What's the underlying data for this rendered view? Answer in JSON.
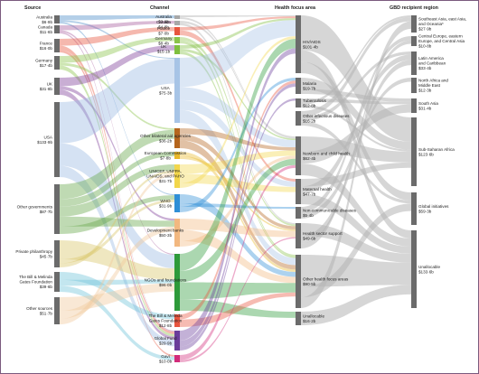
{
  "headers": {
    "source": "Source",
    "channel": "Channel",
    "focus": "Health focus area",
    "region": "GBD recipient region"
  },
  "sources": [
    {
      "id": "australia",
      "name": "Australia",
      "value": "$6·9b",
      "color": "#4d8cc9"
    },
    {
      "id": "canada",
      "name": "Canada",
      "value": "$11·6b",
      "color": "#a85d9e"
    },
    {
      "id": "france",
      "name": "France",
      "value": "$16·0b",
      "color": "#e8553e"
    },
    {
      "id": "germany",
      "name": "Germany",
      "value": "$17·4b",
      "color": "#8bc34a"
    },
    {
      "id": "uk",
      "name": "UK",
      "value": "$31·8b",
      "color": "#7e3f98"
    },
    {
      "id": "usa",
      "name": "USA",
      "value": "$133·9b",
      "color": "#9bbbe3"
    },
    {
      "id": "other-governments",
      "name": "Other governments",
      "value": "$87·7b",
      "color": "#66a84a"
    },
    {
      "id": "private-philanthropy",
      "name": "Private philanthropy",
      "value": "$45·7b",
      "color": "#d8c56a"
    },
    {
      "id": "gates-foundation",
      "name": "The Bill & Melinda Gates Foundation",
      "value": "$39·6b",
      "color": "#6fc4d8"
    },
    {
      "id": "other-sources",
      "name": "Other sources",
      "value": "$51·7b",
      "color": "#f1c99a"
    }
  ],
  "channels": [
    {
      "id": "ch-australia",
      "name": "Australia",
      "value": "$3·9b",
      "color": "#a8a8a8"
    },
    {
      "id": "ch-canada",
      "name": "Canada",
      "value": "$4·8b",
      "color": "#a8a8a8"
    },
    {
      "id": "ch-france",
      "name": "France",
      "value": "$7·0b",
      "color": "#e8553e"
    },
    {
      "id": "ch-germany",
      "name": "Germany",
      "value": "$8·4b",
      "color": "#8bc34a"
    },
    {
      "id": "ch-uk",
      "name": "UK",
      "value": "$15·1b",
      "color": "#7fbf3f"
    },
    {
      "id": "ch-usa",
      "name": "USA",
      "value": "$75·3b",
      "color": "#a7c4e6"
    },
    {
      "id": "ch-bilateral",
      "name": "Other bilateral aid agencies",
      "value": "$36·2b",
      "color": "#b5651d"
    },
    {
      "id": "ch-ec",
      "name": "European Commission",
      "value": "$7·8b",
      "color": "#e8b82a"
    },
    {
      "id": "ch-unicef",
      "name": "UNICEF, UNFPA, UNAIDS, and PAHO",
      "value": "$31·7b",
      "color": "#f2d64b"
    },
    {
      "id": "ch-who",
      "name": "WHO",
      "value": "$31·9b",
      "color": "#2f8fd6"
    },
    {
      "id": "ch-devbanks",
      "name": "Development banks",
      "value": "$50·3b",
      "color": "#f2b880"
    },
    {
      "id": "ch-ngos",
      "name": "NGOs and foundations",
      "value": "$96·0b",
      "color": "#2e9a3a"
    },
    {
      "id": "ch-gates",
      "name": "The Bill & Melinda Gates Foundation",
      "value": "$12·8b",
      "color": "#e8553e"
    },
    {
      "id": "ch-globalfund",
      "name": "Global Fund",
      "value": "$29·9b",
      "color": "#6a3d9a"
    },
    {
      "id": "ch-gavi",
      "name": "Gavi",
      "value": "$10·0b",
      "color": "#d22b7a"
    }
  ],
  "focus_areas": [
    {
      "id": "hiv",
      "name": "HIV/AIDS",
      "value": "$101·4b"
    },
    {
      "id": "malaria",
      "name": "Malaria",
      "value": "$19·7b"
    },
    {
      "id": "tb",
      "name": "Tuberculosis",
      "value": "$12·8b"
    },
    {
      "id": "other-infectious",
      "name": "Other infectious diseases",
      "value": "$16·2b"
    },
    {
      "id": "newborn",
      "name": "Newborn and child health",
      "value": "$62·4b"
    },
    {
      "id": "maternal",
      "name": "Maternal health",
      "value": "$47·7b"
    },
    {
      "id": "ncd",
      "name": "Non-communicable diseases",
      "value": "$5·4b"
    },
    {
      "id": "hss",
      "name": "Health sector support",
      "value": "$49·6b"
    },
    {
      "id": "other-focus",
      "name": "Other health focus areas",
      "value": "$90·5b"
    },
    {
      "id": "unallocable-focus",
      "name": "Unallocable",
      "value": "$16·2b"
    }
  ],
  "regions": [
    {
      "id": "se-asia",
      "name": "Southeast Asia, east Asia, and Oceania*",
      "value": "$27·9b"
    },
    {
      "id": "central-europe",
      "name": "Central Europe, eastern Europe, and Central Asia",
      "value": "$10·8b"
    },
    {
      "id": "latin-america",
      "name": "Latin America and Caribbean",
      "value": "$33·4b"
    },
    {
      "id": "north-africa",
      "name": "North Africa and Middle East",
      "value": "$12·3b"
    },
    {
      "id": "south-asia",
      "name": "South Asia",
      "value": "$31·4b"
    },
    {
      "id": "ssa",
      "name": "Sub-Saharan Africa",
      "value": "$123·6b"
    },
    {
      "id": "global",
      "name": "Global initiatives",
      "value": "$59·3b"
    },
    {
      "id": "unallocable-region",
      "name": "Unallocable",
      "value": "$133·6b"
    }
  ],
  "colors": {
    "node": "#6b6b6b",
    "focus_flow": "#b4b4b4",
    "border": "#7a5a7e"
  }
}
